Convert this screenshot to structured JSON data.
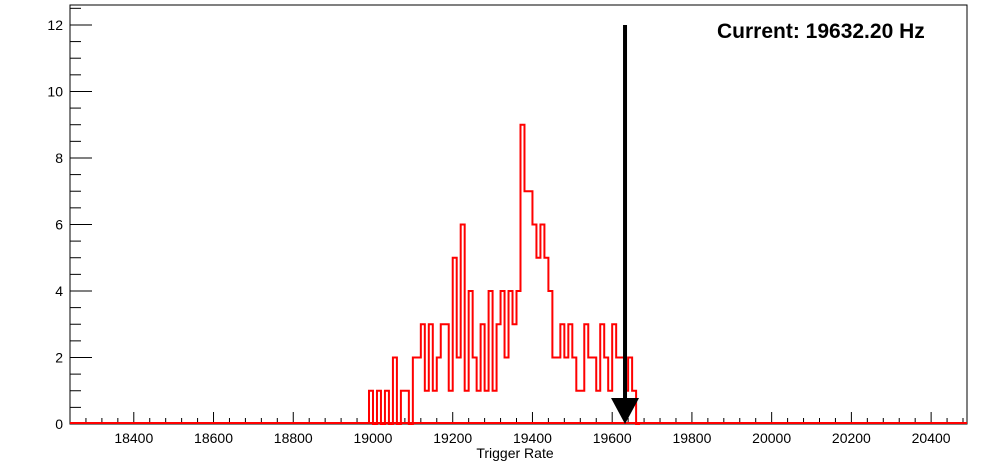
{
  "chart_data": {
    "type": "histogram",
    "title": "",
    "xlabel": "Trigger Rate",
    "ylabel": "",
    "xlim": [
      18240,
      20490
    ],
    "ylim": [
      0,
      12.6
    ],
    "x_ticks": [
      18400,
      18600,
      18800,
      19000,
      19200,
      19400,
      19600,
      19800,
      20000,
      20200,
      20400
    ],
    "y_ticks": [
      0,
      2,
      4,
      6,
      8,
      10,
      12
    ],
    "grid": false,
    "legend": "none",
    "bin_width": 10,
    "bins": [
      [
        18990,
        1
      ],
      [
        19000,
        0
      ],
      [
        19010,
        1
      ],
      [
        19020,
        0
      ],
      [
        19030,
        1
      ],
      [
        19040,
        0
      ],
      [
        19050,
        2
      ],
      [
        19060,
        0
      ],
      [
        19070,
        1
      ],
      [
        19080,
        1
      ],
      [
        19090,
        0
      ],
      [
        19100,
        2
      ],
      [
        19110,
        2
      ],
      [
        19120,
        3
      ],
      [
        19130,
        1
      ],
      [
        19140,
        3
      ],
      [
        19150,
        1
      ],
      [
        19160,
        2
      ],
      [
        19170,
        3
      ],
      [
        19180,
        3
      ],
      [
        19190,
        1
      ],
      [
        19200,
        5
      ],
      [
        19210,
        2
      ],
      [
        19220,
        6
      ],
      [
        19230,
        1
      ],
      [
        19240,
        4
      ],
      [
        19250,
        2
      ],
      [
        19260,
        1
      ],
      [
        19270,
        3
      ],
      [
        19280,
        1
      ],
      [
        19290,
        4
      ],
      [
        19300,
        1
      ],
      [
        19310,
        3
      ],
      [
        19320,
        4
      ],
      [
        19330,
        2
      ],
      [
        19340,
        4
      ],
      [
        19350,
        3
      ],
      [
        19360,
        4
      ],
      [
        19370,
        9
      ],
      [
        19380,
        7
      ],
      [
        19390,
        7
      ],
      [
        19400,
        6
      ],
      [
        19410,
        5
      ],
      [
        19420,
        6
      ],
      [
        19430,
        5
      ],
      [
        19440,
        4
      ],
      [
        19450,
        2
      ],
      [
        19460,
        2
      ],
      [
        19470,
        3
      ],
      [
        19480,
        2
      ],
      [
        19490,
        3
      ],
      [
        19500,
        2
      ],
      [
        19510,
        1
      ],
      [
        19520,
        1
      ],
      [
        19530,
        3
      ],
      [
        19540,
        2
      ],
      [
        19550,
        2
      ],
      [
        19560,
        1
      ],
      [
        19570,
        3
      ],
      [
        19580,
        2
      ],
      [
        19590,
        1
      ],
      [
        19600,
        3
      ],
      [
        19610,
        2
      ],
      [
        19620,
        2
      ],
      [
        19630,
        1
      ],
      [
        19640,
        2
      ],
      [
        19650,
        1
      ],
      [
        19660,
        0
      ]
    ],
    "series_color": "#ff0000",
    "annotation": {
      "text": "Current: 19632.20 Hz",
      "arrow_x": 19632.2,
      "arrow_from_y": 12,
      "arrow_to_y": 0,
      "color": "#000000"
    }
  }
}
